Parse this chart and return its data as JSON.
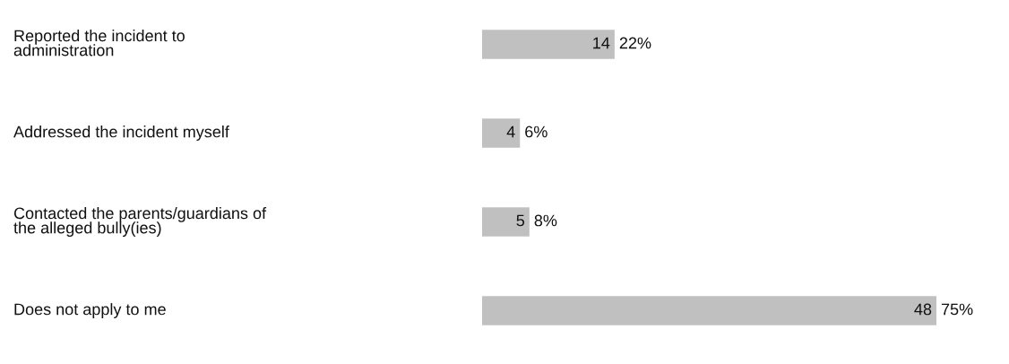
{
  "chart_data": {
    "type": "bar",
    "orientation": "horizontal",
    "categories": [
      "Reported the incident to\nadministration",
      "Addressed the incident myself",
      "Contacted the parents/guardians of\nthe alleged bully(ies)",
      "Does not apply to me"
    ],
    "values": [
      14,
      4,
      5,
      48
    ],
    "color": "#c0c0c0",
    "value_labels": [
      "14",
      "4",
      "5",
      "48"
    ],
    "annotations": [
      {
        "text": "22%",
        "x": 14,
        "y": "Reported the incident to\nadministration"
      },
      {
        "text": "6%",
        "x": 4,
        "y": "Addressed the incident myself"
      },
      {
        "text": "8%",
        "x": 5,
        "y": "Contacted the parents/guardians of\nthe alleged bully(ies)"
      },
      {
        "text": "75%",
        "x": 48,
        "y": "Does not apply to me"
      }
    ]
  }
}
